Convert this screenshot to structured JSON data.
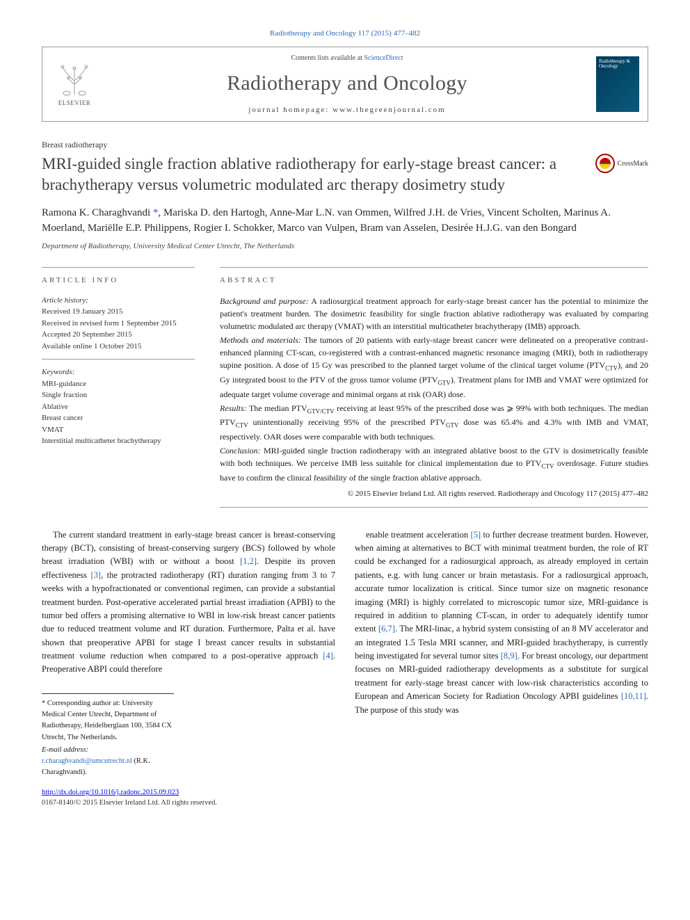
{
  "journal_ref": "Radiotherapy and Oncology 117 (2015) 477–482",
  "banner": {
    "contents_prefix": "Contents lists available at ",
    "contents_link": "ScienceDirect",
    "journal_name": "Radiotherapy and Oncology",
    "homepage_prefix": "journal homepage: ",
    "homepage_url": "www.thegreenjournal.com",
    "publisher": "ELSEVIER",
    "cover_title": "Radiotherapy & Oncology"
  },
  "section_label": "Breast radiotherapy",
  "title": "MRI-guided single fraction ablative radiotherapy for early-stage breast cancer: a brachytherapy versus volumetric modulated arc therapy dosimetry study",
  "crossmark_label": "CrossMark",
  "authors_html": "Ramona K. Charaghvandi <span class=\"star\">*</span>, Mariska D. den Hartogh, Anne-Mar L.N. van Ommen, Wilfred J.H. de Vries, Vincent Scholten, Marinus A. Moerland, Mariëlle E.P. Philippens, Rogier I. Schokker, Marco van Vulpen, Bram van Asselen, Desirée H.J.G. van den Bongard",
  "affiliation": "Department of Radiotherapy, University Medical Center Utrecht, The Netherlands",
  "info": {
    "head": "article info",
    "history_label": "Article history:",
    "history": [
      "Received 19 January 2015",
      "Received in revised form 1 September 2015",
      "Accepted 20 September 2015",
      "Available online 1 October 2015"
    ],
    "keywords_label": "Keywords:",
    "keywords": [
      "MRI-guidance",
      "Single fraction",
      "Ablative",
      "Breast cancer",
      "VMAT",
      "Interstitial multicatheter brachytherapy"
    ]
  },
  "abstract": {
    "head": "abstract",
    "background_label": "Background and purpose:",
    "background": "A radiosurgical treatment approach for early-stage breast cancer has the potential to minimize the patient's treatment burden. The dosimetric feasibility for single fraction ablative radiotherapy was evaluated by comparing volumetric modulated arc therapy (VMAT) with an interstitial multicatheter brachytherapy (IMB) approach.",
    "methods_label": "Methods and materials:",
    "methods": "The tumors of 20 patients with early-stage breast cancer were delineated on a preoperative contrast-enhanced planning CT-scan, co-registered with a contrast-enhanced magnetic resonance imaging (MRI), both in radiotherapy supine position. A dose of 15 Gy was prescribed to the planned target volume of the clinical target volume (PTV_CTV), and 20 Gy integrated boost to the PTV of the gross tumor volume (PTV_GTV). Treatment plans for IMB and VMAT were optimized for adequate target volume coverage and minimal organs at risk (OAR) dose.",
    "results_label": "Results:",
    "results": "The median PTV_GTV/CTV receiving at least 95% of the prescribed dose was ⩾ 99% with both techniques. The median PTV_CTV unintentionally receiving 95% of the prescribed PTV_GTV dose was 65.4% and 4.3% with IMB and VMAT, respectively. OAR doses were comparable with both techniques.",
    "conclusion_label": "Conclusion:",
    "conclusion": "MRI-guided single fraction radiotherapy with an integrated ablative boost to the GTV is dosimetrically feasible with both techniques. We perceive IMB less suitable for clinical implementation due to PTV_CTV overdosage. Future studies have to confirm the clinical feasibility of the single fraction ablative approach.",
    "copyright": "© 2015 Elsevier Ireland Ltd. All rights reserved. Radiotherapy and Oncology 117 (2015) 477–482"
  },
  "body": {
    "left": "The current standard treatment in early-stage breast cancer is breast-conserving therapy (BCT), consisting of breast-conserving surgery (BCS) followed by whole breast irradiation (WBI) with or without a boost <a href=\"#\">[1,2]</a>. Despite its proven effectiveness <a href=\"#\">[3]</a>, the protracted radiotherapy (RT) duration ranging from 3 to 7 weeks with a hypofractionated or conventional regimen, can provide a substantial treatment burden. Post-operative accelerated partial breast irradiation (APBI) to the tumor bed offers a promising alternative to WBI in low-risk breast cancer patients due to reduced treatment volume and RT duration. Furthermore, Palta et al. have shown that preoperative APBI for stage I breast cancer results in substantial treatment volume reduction when compared to a post-operative approach <a href=\"#\">[4]</a>. Preoperative ABPI could therefore",
    "right": "enable treatment acceleration <a href=\"#\">[5]</a> to further decrease treatment burden. However, when aiming at alternatives to BCT with minimal treatment burden, the role of RT could be exchanged for a radiosurgical approach, as already employed in certain patients, e.g. with lung cancer or brain metastasis. For a radiosurgical approach, accurate tumor localization is critical. Since tumor size on magnetic resonance imaging (MRI) is highly correlated to microscopic tumor size, MRI-guidance is required in addition to planning CT-scan, in order to adequately identify tumor extent <a href=\"#\">[6,7]</a>. The MRI-linac, a hybrid system consisting of an 8 MV accelerator and an integrated 1.5 Tesla MRI scanner, and MRI-guided brachytherapy, is currently being investigated for several tumor sites <a href=\"#\">[8,9]</a>. For breast oncology, our department focuses on MRI-guided radiotherapy developments as a substitute for surgical treatment for early-stage breast cancer with low-risk characteristics according to European and American Society for Radiation Oncology APBI guidelines <a href=\"#\">[10,11]</a>. The purpose of this study was"
  },
  "footnotes": {
    "corr": "* Corresponding author at: University Medical Center Utrecht, Department of Radiotherapy, Heidelberglaan 100, 3584 CX Utrecht, The Netherlands.",
    "email_label": "E-mail address:",
    "email": "r.charaghvandi@umcutrecht.nl",
    "email_name": "(R.K. Charaghvandi)."
  },
  "doi": "http://dx.doi.org/10.1016/j.radonc.2015.09.023",
  "issn_rights": "0167-8140/© 2015 Elsevier Ireland Ltd. All rights reserved.",
  "colors": {
    "link": "#2a6ab8",
    "elsevier_orange": "#e67817",
    "text": "#1a1a1a",
    "muted": "#555"
  }
}
